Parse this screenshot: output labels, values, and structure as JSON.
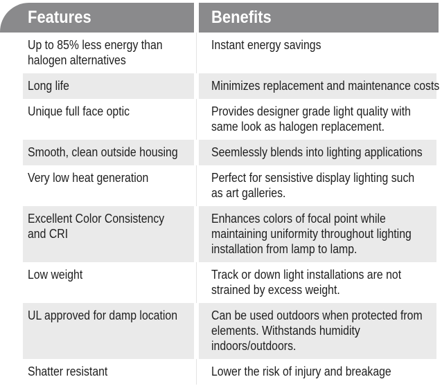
{
  "header": {
    "features_label": "Features",
    "benefits_label": "Benefits"
  },
  "rows": [
    {
      "feature": "Up to 85% less energy than\nhalogen alternatives",
      "benefit": "Instant energy savings",
      "shaded": false
    },
    {
      "feature": "Long life",
      "benefit": "Minimizes replacement and maintenance costs",
      "shaded": true
    },
    {
      "feature": "Unique full face optic",
      "benefit": "Provides designer grade light quality with\nsame look as halogen replacement.",
      "shaded": false
    },
    {
      "feature": "Smooth, clean outside housing",
      "benefit": "Seemlessly blends into lighting applications",
      "shaded": true
    },
    {
      "feature": "Very low heat generation",
      "benefit": "Perfect for sensistive display lighting such\nas art galleries.",
      "shaded": false
    },
    {
      "feature": "Excellent Color Consistency\nand CRI",
      "benefit": "Enhances colors of focal point while\nmaintaining uniformity throughout lighting\ninstallation from lamp to lamp.",
      "shaded": true
    },
    {
      "feature": "Low weight",
      "benefit": "Track or down light installations are not\nstrained by excess weight.",
      "shaded": false
    },
    {
      "feature": "UL approved for damp location",
      "benefit": "Can be used outdoors when protected from\nelements. Withstands humidity\nindoors/outdoors.",
      "shaded": true
    },
    {
      "feature": "Shatter resistant",
      "benefit": "Lower the risk of injury and breakage",
      "shaded": false
    }
  ],
  "colors": {
    "header_background": "#8a8a8c",
    "header_text": "#ffffff",
    "row_stripe": "#eaeaea",
    "body_text": "#1e1e1e"
  }
}
